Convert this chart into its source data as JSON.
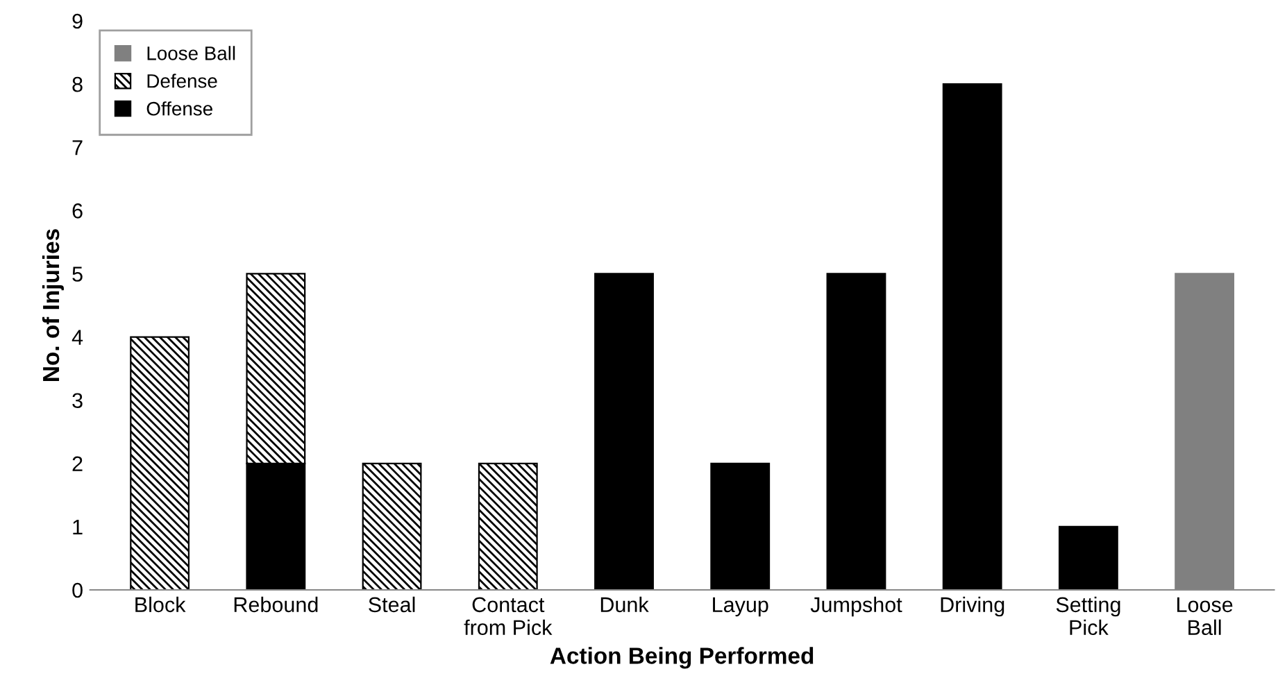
{
  "chart_data": {
    "type": "bar",
    "stacked": true,
    "xlabel": "Action Being Performed",
    "ylabel": "No. of Injuries",
    "categories": [
      "Block",
      "Rebound",
      "Steal",
      "Contact\nfrom Pick",
      "Dunk",
      "Layup",
      "Jumpshot",
      "Driving",
      "Setting\nPick",
      "Loose\nBall"
    ],
    "series": [
      {
        "name": "Offense",
        "color": "#000000",
        "values": [
          0,
          2,
          0,
          0,
          5,
          2,
          5,
          8,
          1,
          0
        ]
      },
      {
        "name": "Defense",
        "color": "#000000",
        "values": [
          4,
          3,
          2,
          2,
          0,
          0,
          0,
          0,
          0,
          0
        ]
      },
      {
        "name": "Loose Ball",
        "color": "#808080",
        "values": [
          0,
          0,
          0,
          0,
          0,
          0,
          0,
          0,
          0,
          5
        ]
      }
    ],
    "ylim": [
      0,
      9
    ],
    "yticks": [
      0,
      1,
      2,
      3,
      4,
      5,
      6,
      7,
      8,
      9
    ],
    "grid": false,
    "legend": "top left"
  }
}
